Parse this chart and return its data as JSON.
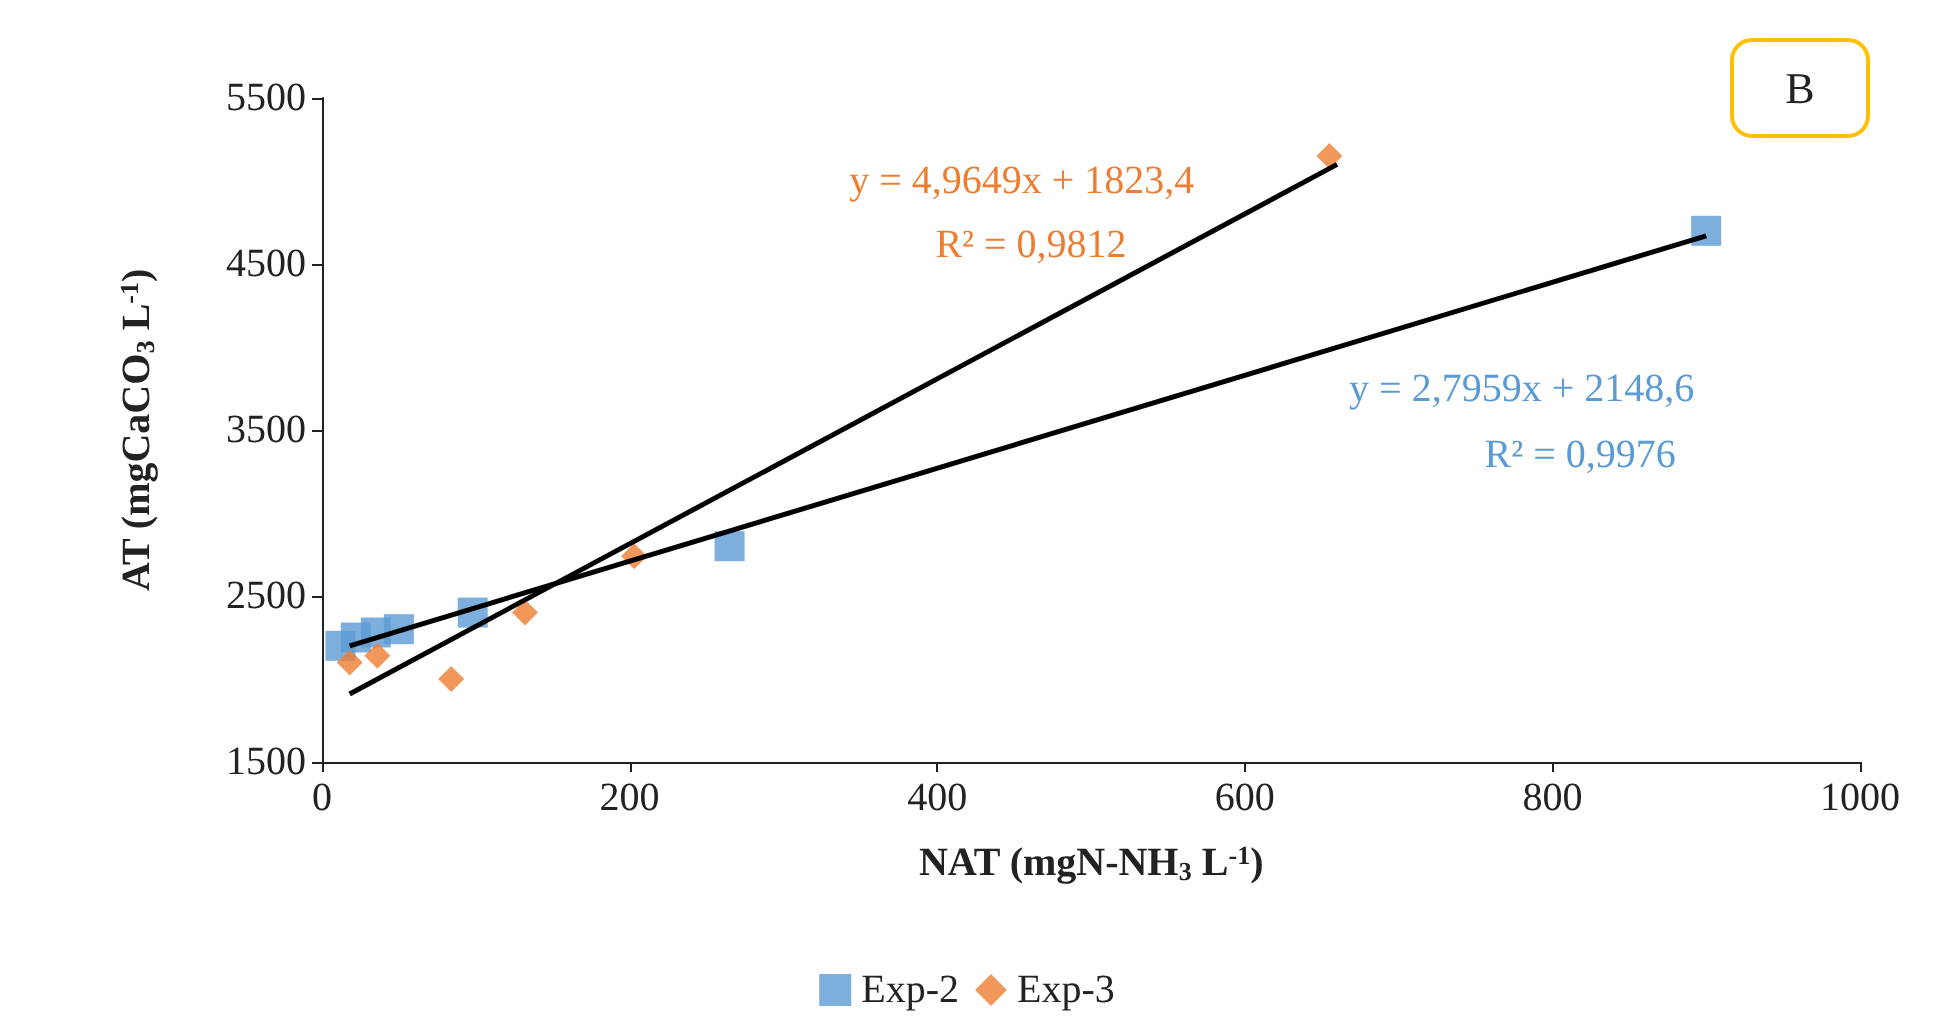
{
  "chart_data": {
    "type": "scatter",
    "xlabel": "NAT (mgN-NH$_{3}$ L$^{-1}$)",
    "ylabel": "AT (mgCaCO$_{3}$ L$^{-1}$)",
    "xlim": [
      0,
      1000
    ],
    "xticks": [
      0,
      200,
      400,
      600,
      800,
      1000
    ],
    "ylim": [
      1500,
      5500
    ],
    "yticks": [
      1500,
      2500,
      3500,
      4500,
      5500
    ],
    "grid": false,
    "legend": "bottom",
    "series": [
      {
        "name": "Exp-2",
        "color": "#5b9bd5",
        "marker": "square",
        "x": [
          12,
          22,
          35,
          50,
          98,
          265,
          900
        ],
        "values": [
          2200,
          2250,
          2280,
          2300,
          2400,
          2800,
          4700
        ]
      },
      {
        "name": "Exp-3",
        "color": "#ed7d31",
        "marker": "diamond",
        "x": [
          18,
          36,
          84,
          132,
          203,
          655
        ],
        "values": [
          2100,
          2140,
          2000,
          2400,
          2740,
          5150
        ]
      },
      {
        "type": "line",
        "color": "#000000",
        "marker": "none",
        "x": [
          18,
          900
        ],
        "values": [
          2200,
          4670
        ]
      },
      {
        "type": "line",
        "color": "#000000",
        "marker": "none",
        "x": [
          18,
          660
        ],
        "values": [
          1910,
          5100
        ]
      }
    ],
    "annotations": [
      "y = 4,9649x + 1823,4",
      "R² = 0,9812",
      "y = 2,7959x + 2148,6",
      "R² = 0,9976",
      "B"
    ]
  }
}
